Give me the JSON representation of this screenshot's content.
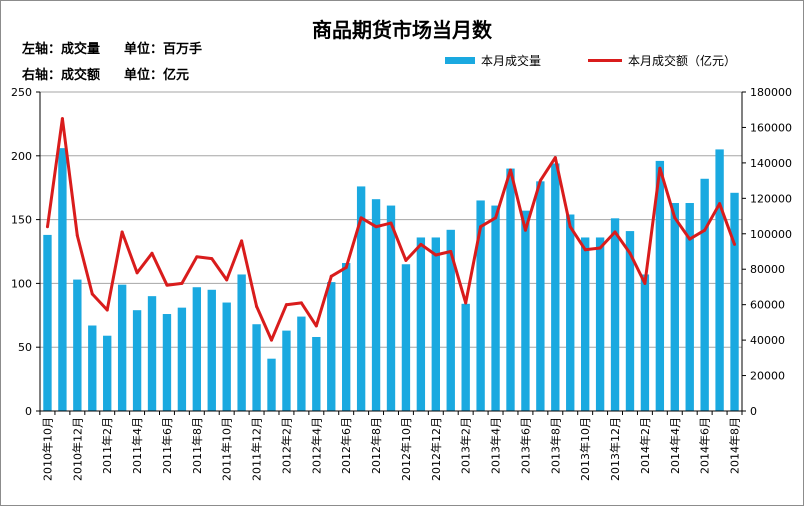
{
  "chart_data": {
    "type": "bar",
    "title": "商品期货市场当月数",
    "left_axis_note": "左轴：成交量",
    "left_axis_unit": "单位：百万手",
    "right_axis_note": "右轴：成交额",
    "right_axis_unit": "单位：亿元",
    "ylim_left": [
      0,
      250
    ],
    "yticks_left": [
      0,
      50,
      100,
      150,
      200,
      250
    ],
    "ylim_right": [
      0,
      180000
    ],
    "yticks_right": [
      0,
      20000,
      40000,
      60000,
      80000,
      100000,
      120000,
      140000,
      160000,
      180000
    ],
    "grid": true,
    "categories": [
      "2010年10月",
      "2010年11月",
      "2010年12月",
      "2011年1月",
      "2011年2月",
      "2011年3月",
      "2011年4月",
      "2011年5月",
      "2011年6月",
      "2011年7月",
      "2011年8月",
      "2011年9月",
      "2011年10月",
      "2011年11月",
      "2011年12月",
      "2012年1月",
      "2012年2月",
      "2012年3月",
      "2012年4月",
      "2012年5月",
      "2012年6月",
      "2012年7月",
      "2012年8月",
      "2012年9月",
      "2012年10月",
      "2012年11月",
      "2012年12月",
      "2013年1月",
      "2013年2月",
      "2013年3月",
      "2013年4月",
      "2013年5月",
      "2013年6月",
      "2013年7月",
      "2013年8月",
      "2013年9月",
      "2013年10月",
      "2013年11月",
      "2013年12月",
      "2014年1月",
      "2014年2月",
      "2014年3月",
      "2014年4月",
      "2014年5月",
      "2014年6月",
      "2014年7月",
      "2014年8月"
    ],
    "xtick_labels": [
      "2010年10月",
      "2010年12月",
      "2011年2月",
      "2011年4月",
      "2011年6月",
      "2011年8月",
      "2011年10月",
      "2011年12月",
      "2012年2月",
      "2012年4月",
      "2012年6月",
      "2012年8月",
      "2012年10月",
      "2012年12月",
      "2013年2月",
      "2013年4月",
      "2013年6月",
      "2013年8月",
      "2013年10月",
      "2013年12月",
      "2014年2月",
      "2014年4月",
      "2014年6月",
      "2014年8月"
    ],
    "series": [
      {
        "name": "本月成交量",
        "type": "bar",
        "axis": "left",
        "color": "#1aa9e0",
        "values": [
          138,
          206,
          103,
          67,
          59,
          99,
          79,
          90,
          76,
          81,
          97,
          95,
          85,
          107,
          68,
          41,
          63,
          74,
          58,
          101,
          116,
          176,
          166,
          161,
          115,
          136,
          136,
          142,
          84,
          165,
          161,
          190,
          157,
          180,
          194,
          154,
          136,
          136,
          151,
          141,
          107,
          196,
          163,
          163,
          182,
          205,
          171
        ]
      },
      {
        "name": "本月成交额（亿元）",
        "type": "line",
        "axis": "right",
        "color": "#d91c1c",
        "values": [
          104000,
          165000,
          99000,
          66000,
          57000,
          101000,
          78000,
          89000,
          71000,
          72000,
          87000,
          86000,
          74000,
          96000,
          59000,
          40000,
          60000,
          61000,
          48000,
          76000,
          81000,
          109000,
          104000,
          106000,
          85000,
          94000,
          88000,
          90000,
          61000,
          104000,
          109000,
          136000,
          102000,
          130000,
          143000,
          104000,
          91000,
          92000,
          101000,
          89000,
          72000,
          137000,
          109000,
          97000,
          102000,
          117000,
          94000
        ]
      }
    ]
  }
}
